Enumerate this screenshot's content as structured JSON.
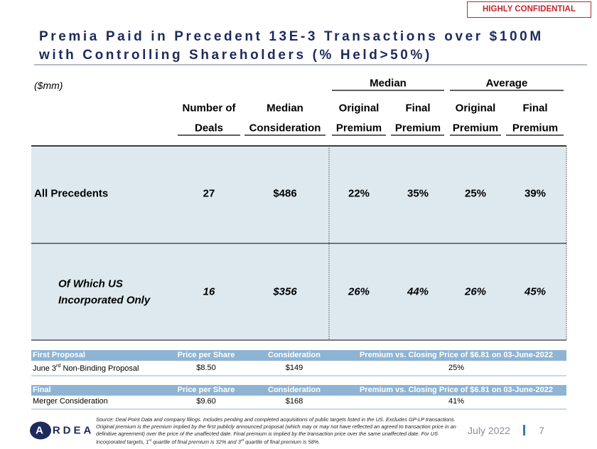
{
  "badge": "HIGHLY CONFIDENTIAL",
  "title": [
    "Premia Paid in Precedent 13E-3 Transactions over $100M",
    "with Controlling Shareholders (% Held>50%)"
  ],
  "units": "($mm)",
  "group_headers": [
    "Median",
    "Average"
  ],
  "columns": [
    [
      "Number of",
      "Deals"
    ],
    [
      "Median",
      "Consideration"
    ],
    [
      "Original",
      "Premium"
    ],
    [
      "Final",
      "Premium"
    ],
    [
      "Original",
      "Premium"
    ],
    [
      "Final",
      "Premium"
    ]
  ],
  "rows": [
    {
      "label": [
        "All Precedents"
      ],
      "cells": [
        "27",
        "$486",
        "22%",
        "35%",
        "25%",
        "39%"
      ]
    },
    {
      "label": [
        "Of Which US",
        "Incorporated Only"
      ],
      "cells": [
        "16",
        "$356",
        "26%",
        "44%",
        "26%",
        "45%"
      ]
    }
  ],
  "proposals": [
    {
      "header": [
        "First Proposal",
        "Price per Share",
        "Consideration",
        "Premium vs. Closing Price of $6.81 on 03-June-2022"
      ],
      "row": [
        [
          "June 3",
          "rd",
          " Non-Binding Proposal"
        ],
        "$8.50",
        "$149",
        "25%"
      ]
    },
    {
      "header": [
        "Final",
        "Price per Share",
        "Consideration",
        "Premium vs. Closing Price of $6.81 on 03-June-2022"
      ],
      "row": [
        [
          "Merger Consideration"
        ],
        "$9.60",
        "$168",
        "41%"
      ]
    }
  ],
  "footer": {
    "source": [
      "Source: Deal Point Data and company filings. Includes pending and completed acquisitions of public targets listed in the US. Excludes GP-LP transactions. Original premium is the premium implied by the first publicly announced proposal (which may or may not have reflected an agreed to transaction price in an definitive agreement) over the price of the unaffected date. Final premium is implied by the transaction price over the same unaffected date. For US Incorporated targets, 1",
      "st",
      " quartile of final premium is 32% and 3",
      "rd",
      " quartile of final premium is 58%."
    ],
    "logo": "ARDEA",
    "date": "July 2022",
    "page": "7"
  }
}
